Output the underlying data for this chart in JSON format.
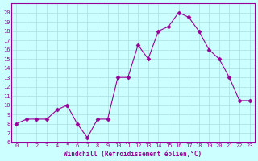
{
  "x": [
    0,
    1,
    2,
    3,
    4,
    5,
    6,
    7,
    8,
    9,
    10,
    11,
    12,
    13,
    14,
    15,
    16,
    17,
    18,
    19,
    20,
    21,
    22,
    23
  ],
  "y": [
    8,
    8.5,
    8.5,
    8.5,
    9.5,
    10,
    8,
    6.5,
    8.5,
    8.5,
    13,
    13,
    16.5,
    15,
    18,
    18.5,
    20,
    19.5,
    18,
    16,
    15,
    13,
    10.5,
    10.5
  ],
  "line_color": "#990099",
  "marker": "D",
  "marker_size": 2.5,
  "bg_color": "#ccffff",
  "grid_color": "#aadddd",
  "xlabel": "Windchill (Refroidissement éolien,°C)",
  "ylim": [
    6,
    21
  ],
  "xlim": [
    -0.5,
    23.5
  ],
  "yticks": [
    6,
    7,
    8,
    9,
    10,
    11,
    12,
    13,
    14,
    15,
    16,
    17,
    18,
    19,
    20
  ],
  "xticks": [
    0,
    1,
    2,
    3,
    4,
    5,
    6,
    7,
    8,
    9,
    10,
    11,
    12,
    13,
    14,
    15,
    16,
    17,
    18,
    19,
    20,
    21,
    22,
    23
  ]
}
